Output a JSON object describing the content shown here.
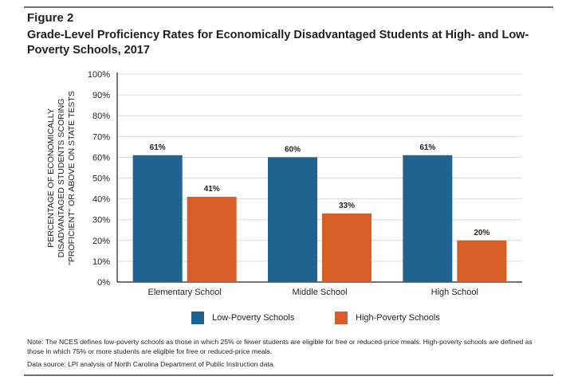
{
  "figure_label": "Figure 2",
  "title": "Grade-Level Proficiency Rates for Economically Disadvantaged Students at High- and Low-Poverty Schools, 2017",
  "note": "Note: The NCES defines low-poverty schools as those in which 25% or fewer students are eligible for free or reduced-price meals. High-poverty schools are defined as those in which 75% or more students are eligible for free or reduced-price meals.",
  "source": "Data source: LPI analysis of North Carolina Department of Public Instruction data.",
  "chart_data": {
    "type": "bar",
    "categories": [
      "Elementary School",
      "Middle School",
      "High School"
    ],
    "series": [
      {
        "name": "Low-Poverty Schools",
        "values": [
          61,
          60,
          61
        ],
        "labels": [
          "61%",
          "60%",
          "61%"
        ],
        "color": "#1f6391"
      },
      {
        "name": "High-Poverty Schools",
        "values": [
          41,
          33,
          20
        ],
        "labels": [
          "41%",
          "33%",
          "20%"
        ],
        "color": "#d75f27"
      }
    ],
    "ylabel_lines": [
      "PERCENTAGE OF ECONOMICALLY",
      "DISADVANTAGED STUDENTS SCORING",
      "\"PROFICIENT\" OR ABOVE ON STATE TESTS"
    ],
    "ylim": [
      0,
      100
    ],
    "yticks": [
      0,
      10,
      20,
      30,
      40,
      50,
      60,
      70,
      80,
      90,
      100
    ],
    "ytick_labels": [
      "0%",
      "10%",
      "20%",
      "30%",
      "40%",
      "50%",
      "60%",
      "70%",
      "80%",
      "90%",
      "100%"
    ],
    "grid": true,
    "legend_position": "bottom"
  }
}
